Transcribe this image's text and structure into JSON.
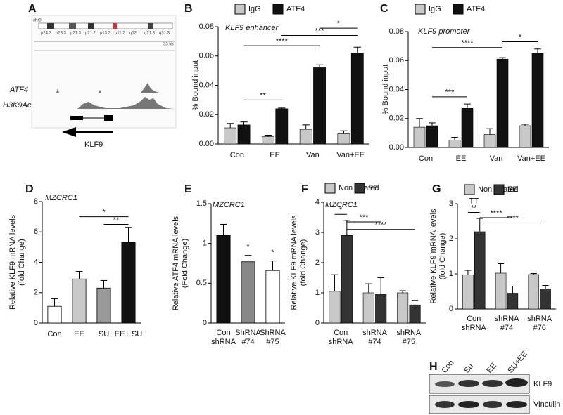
{
  "panel_a": {
    "label": "A",
    "chromosome": "chr9",
    "bands": [
      "p24.3",
      "p23.3",
      "p21.3",
      "p21.2",
      "p13.2",
      "p11.2",
      "q12",
      "q21.3",
      "q31.3"
    ],
    "scale": "33 kb",
    "tracks": [
      "ATF4",
      "H3K9Ac"
    ],
    "gene": "KLF9"
  },
  "panel_h": {
    "label": "H",
    "lanes": [
      "Con",
      "Su",
      "EE",
      "SU+EE"
    ],
    "proteins": [
      "KLF9",
      "Vinculin"
    ]
  },
  "chart_data": [
    {
      "type": "bar",
      "label": "B",
      "subtitle": "KLF9 enhancer",
      "ylabel": [
        "% Bound input"
      ],
      "categories": [
        "Con",
        "EE",
        "Van",
        "Van+EE"
      ],
      "series": [
        {
          "name": "IgG",
          "color": "#c8c8c8",
          "values": [
            0.011,
            0.005,
            0.01,
            0.007
          ],
          "errors": [
            0.003,
            0.001,
            0.003,
            0.002
          ]
        },
        {
          "name": "ATF4",
          "color": "#111111",
          "values": [
            0.013,
            0.024,
            0.052,
            0.062
          ],
          "errors": [
            0.002,
            0.0005,
            0.002,
            0.004
          ]
        }
      ],
      "ylim": [
        0,
        0.08
      ],
      "yticks": [
        {
          "value": 0,
          "label": "0.00"
        },
        {
          "value": 0.02,
          "label": "0.02"
        },
        {
          "value": 0.04,
          "label": "0.04"
        },
        {
          "value": 0.06,
          "label": "0.06"
        },
        {
          "value": 0.08,
          "label": "0.08"
        }
      ],
      "annotations": [
        "**",
        "****",
        "***",
        "*"
      ],
      "legend": "top"
    },
    {
      "type": "bar",
      "label": "C",
      "subtitle": "KLF9 promoter",
      "ylabel": [
        "% Bound input"
      ],
      "categories": [
        "Con",
        "EE",
        "Van",
        "Van+EE"
      ],
      "series": [
        {
          "name": "IgG",
          "color": "#c8c8c8",
          "values": [
            0.014,
            0.005,
            0.009,
            0.015
          ],
          "errors": [
            0.006,
            0.002,
            0.004,
            0.001
          ]
        },
        {
          "name": "ATF4",
          "color": "#111111",
          "values": [
            0.015,
            0.027,
            0.061,
            0.065
          ],
          "errors": [
            0.002,
            0.003,
            0.001,
            0.003
          ]
        }
      ],
      "ylim": [
        0,
        0.08
      ],
      "yticks": [
        {
          "value": 0,
          "label": "0.00"
        },
        {
          "value": 0.02,
          "label": "0.02"
        },
        {
          "value": 0.04,
          "label": "0.04"
        },
        {
          "value": 0.06,
          "label": "0.06"
        },
        {
          "value": 0.08,
          "label": "0.08"
        }
      ],
      "annotations": [
        "***",
        "****",
        "*"
      ],
      "legend": "top"
    },
    {
      "type": "bar",
      "label": "D",
      "subtitle": "MZCRC1",
      "ylabel": [
        "Relative KLF9 mRNA levels",
        "(fold Change)"
      ],
      "categories": [
        "Con",
        "EE",
        "SU",
        "EE+ SU"
      ],
      "values": [
        1.1,
        2.9,
        2.3,
        5.3
      ],
      "errors": [
        0.5,
        0.5,
        0.5,
        1.0
      ],
      "colors": [
        "#ffffff",
        "#c8c8c8",
        "#999999",
        "#111111"
      ],
      "ylim": [
        0,
        8
      ],
      "yticks": [
        0,
        2,
        4,
        6,
        8
      ],
      "annotations": [
        "*",
        "**"
      ]
    },
    {
      "type": "bar",
      "label": "E",
      "subtitle": "MZCRC1",
      "ylabel": [
        "Relative ATF4 mRNA levels",
        "(Fold Change)"
      ],
      "categories": [
        [
          "Con",
          "shRNA"
        ],
        [
          "ShRNA",
          "#74"
        ],
        [
          "ShRNA",
          "#75"
        ]
      ],
      "values": [
        1.1,
        0.77,
        0.66
      ],
      "errors": [
        0.14,
        0.08,
        0.12
      ],
      "colors": [
        "#111111",
        "#888888",
        "#ffffff"
      ],
      "ylim": [
        0,
        1.5
      ],
      "yticks": [
        0,
        0.5,
        1,
        1.5
      ],
      "annotations": [
        "*",
        "*"
      ]
    },
    {
      "type": "bar",
      "label": "F",
      "subtitle": "MZCRC1",
      "ylabel": [
        "Relative KLF9 mRNA levels",
        "(fold Change)"
      ],
      "categories": [
        [
          "Con",
          "shRNA"
        ],
        [
          "shRNA",
          "#74"
        ],
        [
          "shRNA",
          "#75"
        ]
      ],
      "series": [
        {
          "name": "Non treated",
          "color": "#c8c8c8",
          "values": [
            1.05,
            1.0,
            1.0
          ],
          "errors": [
            0.55,
            0.3,
            0.07
          ]
        },
        {
          "name": "EE",
          "color": "#333333",
          "values": [
            2.9,
            0.95,
            0.6
          ],
          "errors": [
            0.5,
            0.55,
            0.15
          ]
        }
      ],
      "ylim": [
        0,
        4
      ],
      "yticks": [
        0,
        1,
        2,
        3,
        4
      ],
      "annotations": [
        "*",
        "***",
        "****"
      ],
      "legend": "top"
    },
    {
      "type": "bar",
      "label": "G",
      "ylabel": [
        "Relative KLF9 mRNA levels",
        "(fold Change)"
      ],
      "categories": [
        [
          "Con",
          "shRNA"
        ],
        [
          "shRNA",
          "#74"
        ],
        [
          "shRNA",
          "#76"
        ]
      ],
      "series": [
        {
          "name": "Non treated",
          "color": "#c8c8c8",
          "values": [
            0.97,
            1.02,
            0.98
          ],
          "errors": [
            0.13,
            0.27,
            0.03
          ]
        },
        {
          "name": "EE",
          "color": "#333333",
          "values": [
            2.2,
            0.45,
            0.57
          ],
          "errors": [
            0.38,
            0.2,
            0.1
          ]
        }
      ],
      "ylim": [
        0,
        3
      ],
      "yticks": [
        0,
        1,
        2,
        3
      ],
      "annotations": [
        "TT",
        "**",
        "****",
        "****"
      ],
      "legend": "top"
    }
  ]
}
